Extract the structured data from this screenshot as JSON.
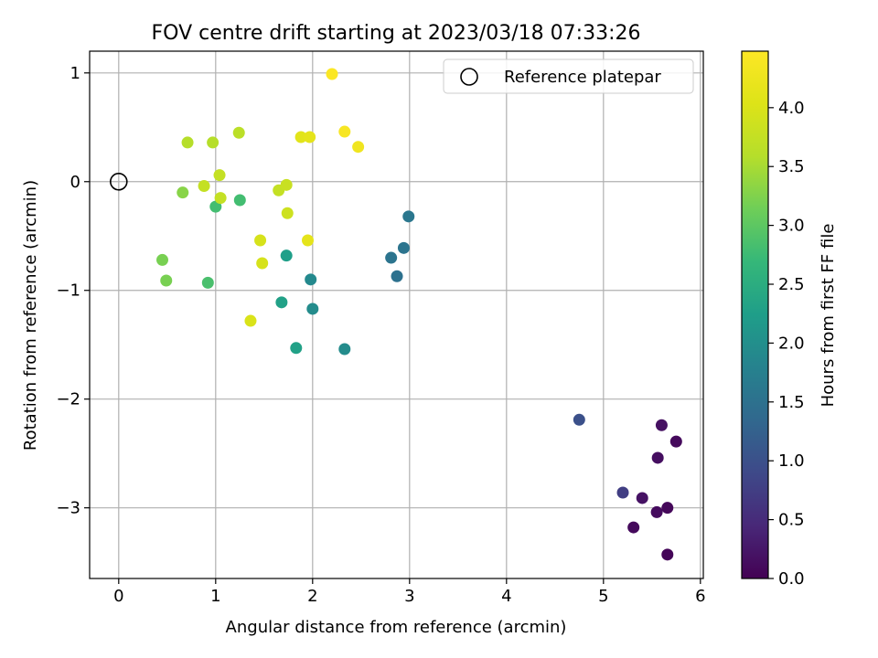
{
  "chart_data": {
    "type": "scatter",
    "title": "FOV centre drift starting at 2023/03/18 07:33:26",
    "xlabel": "Angular distance from reference (arcmin)",
    "ylabel": "Rotation from reference (arcmin)",
    "xlim": [
      -0.3,
      6.03
    ],
    "ylim": [
      -3.65,
      1.2
    ],
    "xticks": [
      0,
      1,
      2,
      3,
      4,
      5,
      6
    ],
    "yticks": [
      -3,
      -2,
      -1,
      0,
      1
    ],
    "xtick_labels": [
      "0",
      "1",
      "2",
      "3",
      "4",
      "5",
      "6"
    ],
    "ytick_labels": [
      "−3",
      "−2",
      "−1",
      "0",
      "1"
    ],
    "grid": true,
    "colormap": "viridis",
    "legend": {
      "placement": "top-right",
      "entries": [
        "Reference platepar"
      ]
    },
    "reference_point": {
      "x": 0,
      "y": 0
    },
    "colorbar": {
      "label": "Hours from first FF file",
      "range": [
        0,
        4.48
      ],
      "ticks": [
        0,
        0.5,
        1,
        1.5,
        2,
        2.5,
        3,
        3.5,
        4
      ],
      "tick_labels": [
        "0.0",
        "0.5",
        "1.0",
        "1.5",
        "2.0",
        "2.5",
        "3.0",
        "3.5",
        "4.0"
      ]
    },
    "points": [
      {
        "x": 5.66,
        "y": -3.43,
        "t": 0.05
      },
      {
        "x": 5.31,
        "y": -3.18,
        "t": 0.1
      },
      {
        "x": 5.55,
        "y": -3.04,
        "t": 0.12
      },
      {
        "x": 5.66,
        "y": -3.0,
        "t": 0.08
      },
      {
        "x": 5.4,
        "y": -2.91,
        "t": 0.2
      },
      {
        "x": 5.56,
        "y": -2.54,
        "t": 0.15
      },
      {
        "x": 5.75,
        "y": -2.39,
        "t": 0.1
      },
      {
        "x": 5.6,
        "y": -2.24,
        "t": 0.18
      },
      {
        "x": 5.2,
        "y": -2.86,
        "t": 0.75
      },
      {
        "x": 4.75,
        "y": -2.19,
        "t": 1.0
      },
      {
        "x": 2.99,
        "y": -0.32,
        "t": 1.6
      },
      {
        "x": 2.94,
        "y": -0.61,
        "t": 1.55
      },
      {
        "x": 2.81,
        "y": -0.7,
        "t": 1.55
      },
      {
        "x": 2.87,
        "y": -0.87,
        "t": 1.5
      },
      {
        "x": 2.33,
        "y": -1.54,
        "t": 1.95
      },
      {
        "x": 1.98,
        "y": -0.9,
        "t": 1.9
      },
      {
        "x": 2.0,
        "y": -1.17,
        "t": 1.95
      },
      {
        "x": 1.73,
        "y": -0.68,
        "t": 2.25
      },
      {
        "x": 1.68,
        "y": -1.11,
        "t": 2.3
      },
      {
        "x": 1.83,
        "y": -1.53,
        "t": 2.3
      },
      {
        "x": 1.0,
        "y": -0.23,
        "t": 2.8
      },
      {
        "x": 1.25,
        "y": -0.17,
        "t": 2.8
      },
      {
        "x": 0.92,
        "y": -0.93,
        "t": 2.85
      },
      {
        "x": 0.45,
        "y": -0.72,
        "t": 3.2
      },
      {
        "x": 0.49,
        "y": -0.91,
        "t": 3.2
      },
      {
        "x": 0.66,
        "y": -0.1,
        "t": 3.3
      },
      {
        "x": 0.71,
        "y": 0.36,
        "t": 3.6
      },
      {
        "x": 0.97,
        "y": 0.36,
        "t": 3.6
      },
      {
        "x": 1.24,
        "y": 0.45,
        "t": 3.65
      },
      {
        "x": 0.88,
        "y": -0.04,
        "t": 3.75
      },
      {
        "x": 1.04,
        "y": 0.06,
        "t": 3.75
      },
      {
        "x": 1.05,
        "y": -0.15,
        "t": 3.75
      },
      {
        "x": 1.65,
        "y": -0.08,
        "t": 3.75
      },
      {
        "x": 1.73,
        "y": -0.03,
        "t": 3.8
      },
      {
        "x": 1.74,
        "y": -0.29,
        "t": 3.85
      },
      {
        "x": 1.46,
        "y": -0.54,
        "t": 3.95
      },
      {
        "x": 1.48,
        "y": -0.75,
        "t": 3.95
      },
      {
        "x": 1.36,
        "y": -1.28,
        "t": 4.0
      },
      {
        "x": 1.95,
        "y": -0.54,
        "t": 4.15
      },
      {
        "x": 1.88,
        "y": 0.41,
        "t": 4.1
      },
      {
        "x": 1.97,
        "y": 0.41,
        "t": 4.15
      },
      {
        "x": 2.47,
        "y": 0.32,
        "t": 4.3
      },
      {
        "x": 2.33,
        "y": 0.46,
        "t": 4.4
      },
      {
        "x": 2.2,
        "y": 0.99,
        "t": 4.45
      }
    ]
  }
}
